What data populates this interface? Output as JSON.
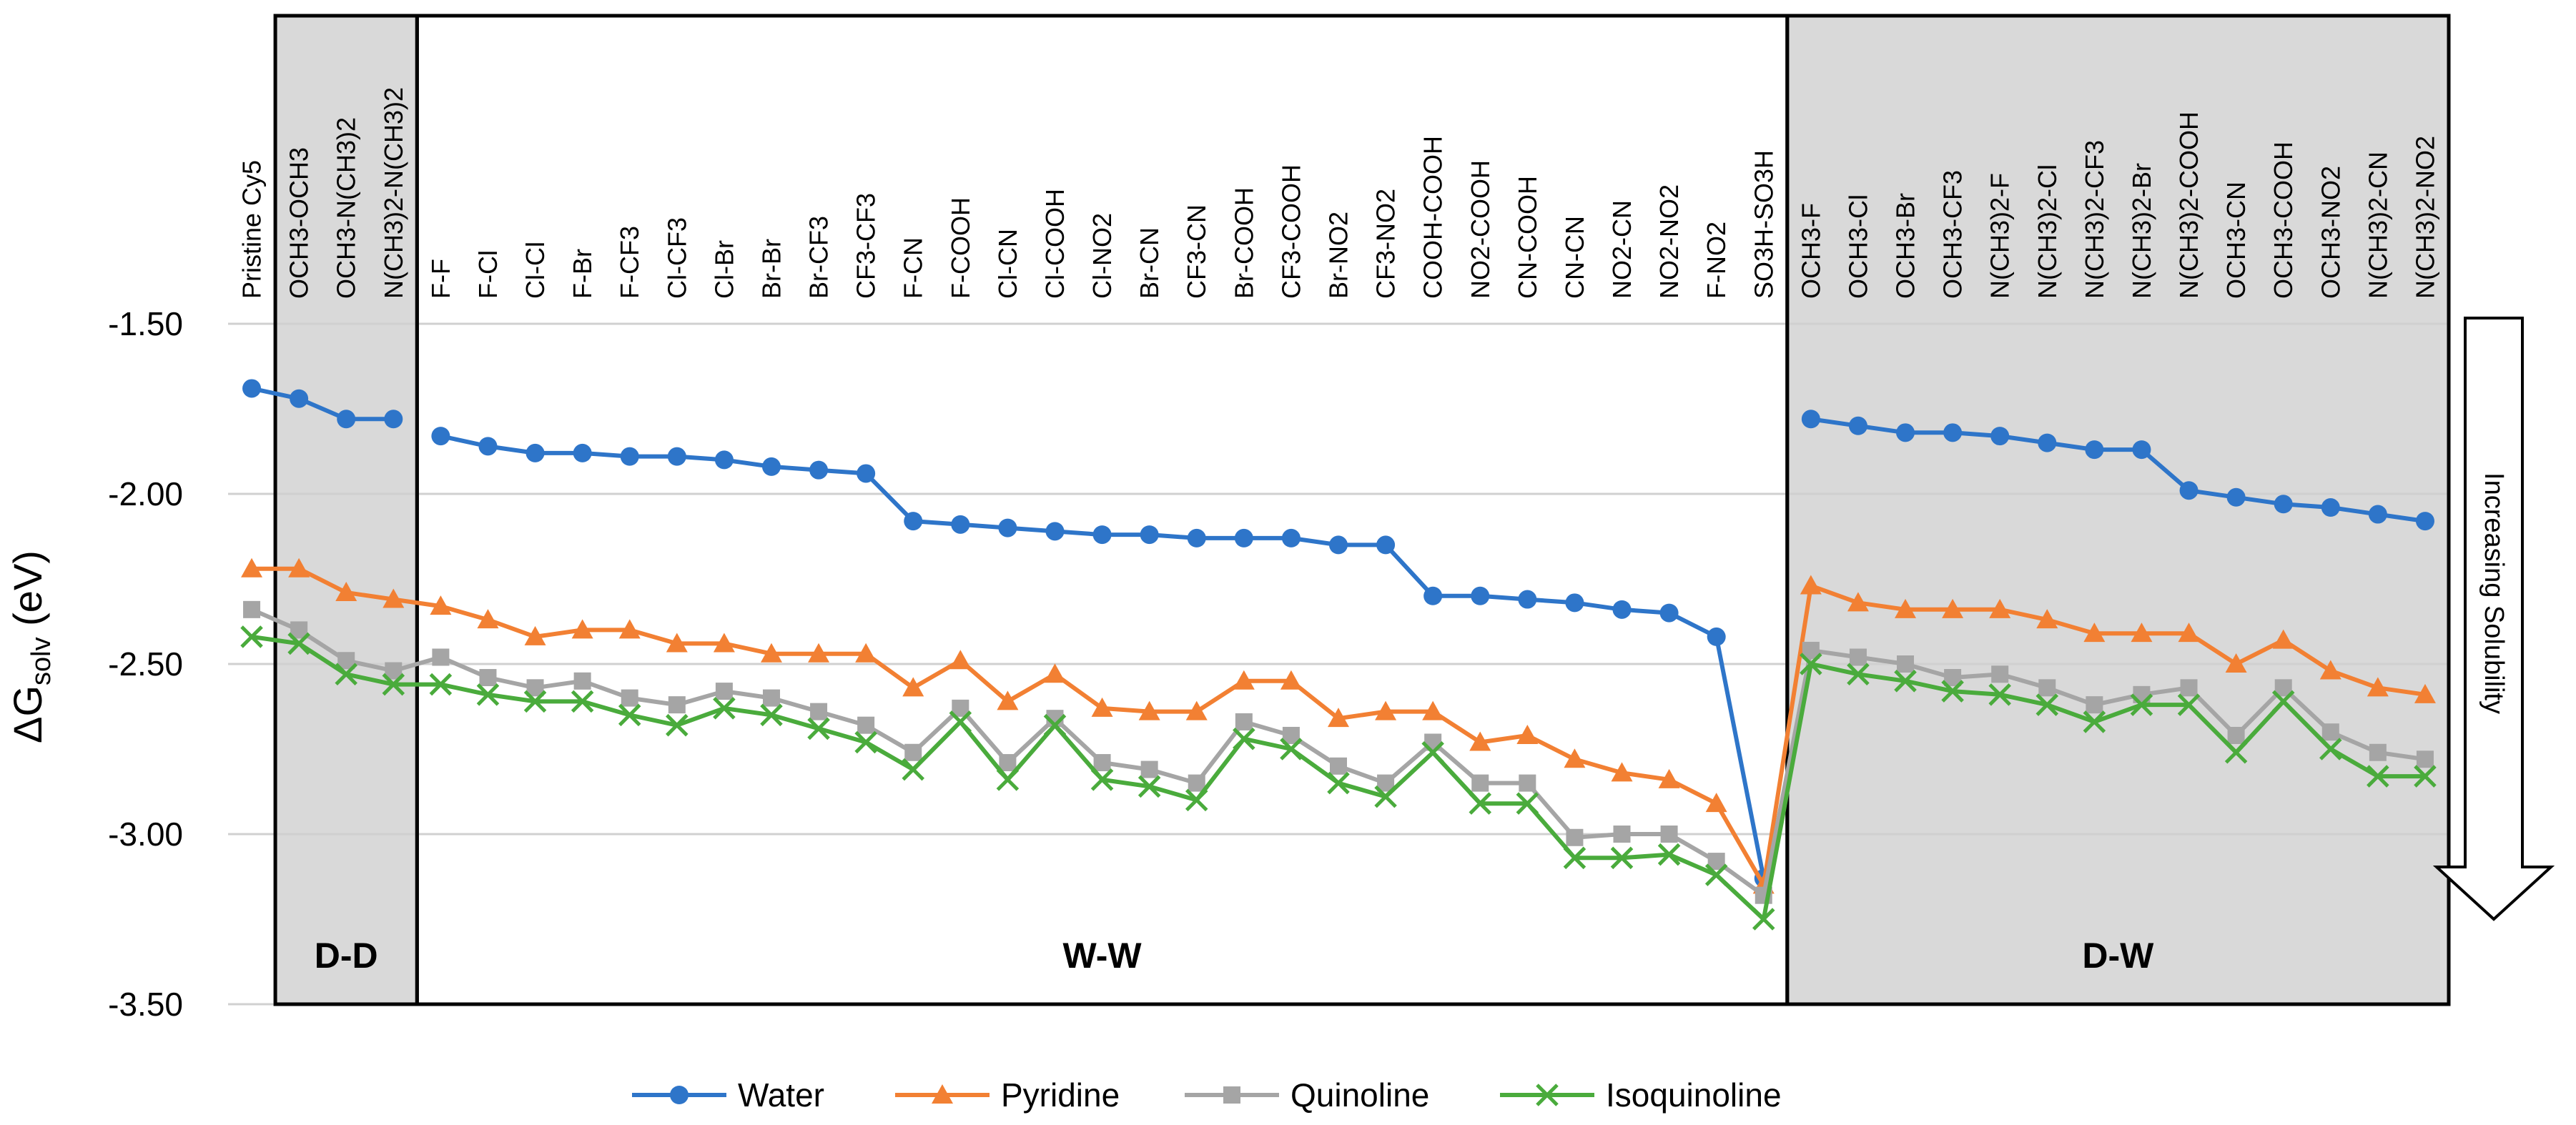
{
  "chart_data": {
    "type": "line",
    "ylabel_main": "ΔG",
    "ylabel_sub": "solv",
    "ylabel_unit": " (eV)",
    "ylim": [
      -3.5,
      -1.5
    ],
    "yticks": [
      "-1.50",
      "-2.00",
      "-2.50",
      "-3.00",
      "-3.50"
    ],
    "ytick_values": [
      -1.5,
      -2.0,
      -2.5,
      -3.0,
      -3.5
    ],
    "grid": true,
    "legend_position": "bottom",
    "annotation": "Increasing Solubility",
    "categories": [
      "Pristine Cy5",
      "OCH3-OCH3",
      "OCH3-N(CH3)2",
      "N(CH3)2-N(CH3)2",
      "F-F",
      "F-Cl",
      "Cl-Cl",
      "F-Br",
      "F-CF3",
      "Cl-CF3",
      "Cl-Br",
      "Br-Br",
      "Br-CF3",
      "CF3-CF3",
      "F-CN",
      "F-COOH",
      "Cl-CN",
      "Cl-COOH",
      "Cl-NO2",
      "Br-CN",
      "CF3-CN",
      "Br-COOH",
      "CF3-COOH",
      "Br-NO2",
      "CF3-NO2",
      "COOH-COOH",
      "NO2-COOH",
      "CN-COOH",
      "CN-CN",
      "NO2-CN",
      "NO2-NO2",
      "F-NO2",
      "SO3H-SO3H",
      "OCH3-F",
      "OCH3-Cl",
      "OCH3-Br",
      "OCH3-CF3",
      "N(CH3)2-F",
      "N(CH3)2-Cl",
      "N(CH3)2-CF3",
      "N(CH3)2-Br",
      "N(CH3)2-COOH",
      "OCH3-CN",
      "OCH3-COOH",
      "OCH3-NO2",
      "N(CH3)2-CN",
      "N(CH3)2-NO2"
    ],
    "groups": [
      {
        "label": "D-D",
        "start": 1,
        "end": 3,
        "shaded": true
      },
      {
        "label": "W-W",
        "start": 4,
        "end": 32,
        "shaded": false
      },
      {
        "label": "D-W",
        "start": 33,
        "end": 46,
        "shaded": true
      }
    ],
    "series": [
      {
        "name": "Water",
        "color": "#2e75c9",
        "marker": "circle",
        "segments": [
          [
            0,
            3
          ],
          [
            4,
            32
          ],
          [
            33,
            46
          ]
        ],
        "values": [
          -1.69,
          -1.72,
          -1.78,
          -1.78,
          -1.83,
          -1.86,
          -1.88,
          -1.88,
          -1.89,
          -1.89,
          -1.9,
          -1.92,
          -1.93,
          -1.94,
          -2.08,
          -2.09,
          -2.1,
          -2.11,
          -2.12,
          -2.12,
          -2.13,
          -2.13,
          -2.13,
          -2.15,
          -2.15,
          -2.3,
          -2.3,
          -2.31,
          -2.32,
          -2.34,
          -2.35,
          -2.42,
          -3.13,
          -1.78,
          -1.8,
          -1.82,
          -1.82,
          -1.83,
          -1.85,
          -1.87,
          -1.87,
          -1.99,
          -2.01,
          -2.03,
          -2.04,
          -2.06,
          -2.08
        ]
      },
      {
        "name": "Pyridine",
        "color": "#f28033",
        "marker": "triangle",
        "segments": [
          [
            0,
            46
          ]
        ],
        "values": [
          -2.22,
          -2.22,
          -2.29,
          -2.31,
          -2.33,
          -2.37,
          -2.42,
          -2.4,
          -2.4,
          -2.44,
          -2.44,
          -2.47,
          -2.47,
          -2.47,
          -2.57,
          -2.49,
          -2.61,
          -2.53,
          -2.63,
          -2.64,
          -2.64,
          -2.55,
          -2.55,
          -2.66,
          -2.64,
          -2.64,
          -2.73,
          -2.71,
          -2.78,
          -2.82,
          -2.84,
          -2.91,
          -3.15,
          -2.27,
          -2.32,
          -2.34,
          -2.34,
          -2.34,
          -2.37,
          -2.41,
          -2.41,
          -2.41,
          -2.5,
          -2.43,
          -2.52,
          -2.57,
          -2.59
        ]
      },
      {
        "name": "Quinoline",
        "color": "#a5a5a5",
        "marker": "square",
        "segments": [
          [
            0,
            46
          ]
        ],
        "values": [
          -2.34,
          -2.4,
          -2.49,
          -2.52,
          -2.48,
          -2.54,
          -2.57,
          -2.55,
          -2.6,
          -2.62,
          -2.58,
          -2.6,
          -2.64,
          -2.68,
          -2.76,
          -2.63,
          -2.79,
          -2.66,
          -2.79,
          -2.81,
          -2.85,
          -2.67,
          -2.71,
          -2.8,
          -2.85,
          -2.73,
          -2.85,
          -2.85,
          -3.01,
          -3.0,
          -3.0,
          -3.08,
          -3.18,
          -2.46,
          -2.48,
          -2.5,
          -2.54,
          -2.53,
          -2.57,
          -2.62,
          -2.59,
          -2.57,
          -2.71,
          -2.57,
          -2.7,
          -2.76,
          -2.78
        ]
      },
      {
        "name": "Isoquinoline",
        "color": "#4aab3c",
        "marker": "x",
        "segments": [
          [
            0,
            46
          ]
        ],
        "values": [
          -2.42,
          -2.44,
          -2.53,
          -2.56,
          -2.56,
          -2.59,
          -2.61,
          -2.61,
          -2.65,
          -2.68,
          -2.63,
          -2.65,
          -2.69,
          -2.73,
          -2.81,
          -2.67,
          -2.84,
          -2.68,
          -2.84,
          -2.86,
          -2.9,
          -2.72,
          -2.75,
          -2.85,
          -2.89,
          -2.76,
          -2.91,
          -2.91,
          -3.07,
          -3.07,
          -3.06,
          -3.12,
          -3.25,
          -2.5,
          -2.53,
          -2.55,
          -2.58,
          -2.59,
          -2.62,
          -2.67,
          -2.62,
          -2.62,
          -2.76,
          -2.61,
          -2.75,
          -2.83,
          -2.83
        ]
      }
    ]
  }
}
